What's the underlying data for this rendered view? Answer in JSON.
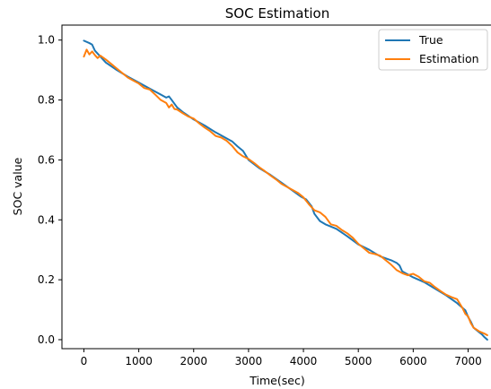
{
  "chart_data": {
    "type": "line",
    "title": "SOC Estimation",
    "xlabel": "Time(sec)",
    "ylabel": "SOC value",
    "xlim": [
      -400,
      7450
    ],
    "ylim": [
      -0.03,
      1.05
    ],
    "xticks": [
      0,
      1000,
      2000,
      3000,
      4000,
      5000,
      6000,
      7000
    ],
    "yticks": [
      0.0,
      0.2,
      0.4,
      0.6,
      0.8,
      1.0
    ],
    "xtick_labels": [
      "0",
      "1000",
      "2000",
      "3000",
      "4000",
      "5000",
      "6000",
      "7000"
    ],
    "ytick_labels": [
      "0.0",
      "0.2",
      "0.4",
      "0.6",
      "0.8",
      "1.0"
    ],
    "grid": false,
    "legend_position": "top-right",
    "series": [
      {
        "name": "True",
        "color": "#1f77b4",
        "x": [
          0,
          100,
          150,
          200,
          400,
          600,
          800,
          1000,
          1200,
          1400,
          1500,
          1550,
          1600,
          1700,
          1800,
          2000,
          2200,
          2400,
          2600,
          2700,
          2800,
          2900,
          3000,
          3200,
          3400,
          3600,
          3800,
          3950,
          4050,
          4150,
          4200,
          4300,
          4400,
          4600,
          4800,
          5000,
          5200,
          5400,
          5600,
          5700,
          5750,
          5800,
          5900,
          6000,
          6200,
          6400,
          6600,
          6800,
          6950,
          7000,
          7050,
          7100,
          7200,
          7250,
          7300,
          7350
        ],
        "y": [
          0.998,
          0.99,
          0.985,
          0.965,
          0.925,
          0.9,
          0.878,
          0.858,
          0.838,
          0.818,
          0.808,
          0.812,
          0.8,
          0.775,
          0.76,
          0.735,
          0.715,
          0.692,
          0.672,
          0.662,
          0.645,
          0.63,
          0.6,
          0.572,
          0.55,
          0.524,
          0.498,
          0.478,
          0.468,
          0.445,
          0.42,
          0.396,
          0.385,
          0.37,
          0.345,
          0.318,
          0.3,
          0.278,
          0.265,
          0.256,
          0.248,
          0.228,
          0.218,
          0.208,
          0.192,
          0.17,
          0.148,
          0.122,
          0.098,
          0.076,
          0.06,
          0.04,
          0.025,
          0.018,
          0.008,
          0.0
        ]
      },
      {
        "name": "Estimation",
        "color": "#ff7f0e",
        "x": [
          0,
          50,
          100,
          150,
          200,
          250,
          300,
          400,
          500,
          600,
          700,
          800,
          900,
          1000,
          1100,
          1200,
          1300,
          1400,
          1500,
          1550,
          1600,
          1650,
          1700,
          1800,
          1900,
          2000,
          2100,
          2200,
          2300,
          2400,
          2500,
          2600,
          2700,
          2800,
          2900,
          3000,
          3100,
          3200,
          3300,
          3400,
          3500,
          3600,
          3700,
          3800,
          3900,
          4000,
          4100,
          4200,
          4300,
          4400,
          4500,
          4600,
          4700,
          4800,
          4900,
          5000,
          5100,
          5200,
          5300,
          5400,
          5500,
          5600,
          5700,
          5800,
          5900,
          6000,
          6100,
          6200,
          6300,
          6400,
          6500,
          6600,
          6700,
          6800,
          6900,
          6950,
          7000,
          7050,
          7100,
          7200,
          7300,
          7350
        ],
        "y": [
          0.945,
          0.968,
          0.952,
          0.962,
          0.95,
          0.94,
          0.948,
          0.935,
          0.92,
          0.905,
          0.89,
          0.875,
          0.865,
          0.855,
          0.84,
          0.835,
          0.818,
          0.8,
          0.79,
          0.775,
          0.785,
          0.77,
          0.768,
          0.756,
          0.745,
          0.738,
          0.722,
          0.708,
          0.696,
          0.68,
          0.675,
          0.664,
          0.647,
          0.625,
          0.612,
          0.603,
          0.59,
          0.575,
          0.562,
          0.548,
          0.535,
          0.52,
          0.51,
          0.5,
          0.49,
          0.475,
          0.452,
          0.432,
          0.425,
          0.41,
          0.385,
          0.38,
          0.366,
          0.355,
          0.34,
          0.32,
          0.305,
          0.29,
          0.286,
          0.28,
          0.265,
          0.25,
          0.232,
          0.222,
          0.215,
          0.22,
          0.21,
          0.195,
          0.19,
          0.175,
          0.162,
          0.15,
          0.142,
          0.135,
          0.105,
          0.086,
          0.078,
          0.055,
          0.04,
          0.028,
          0.02,
          0.015
        ]
      }
    ]
  }
}
